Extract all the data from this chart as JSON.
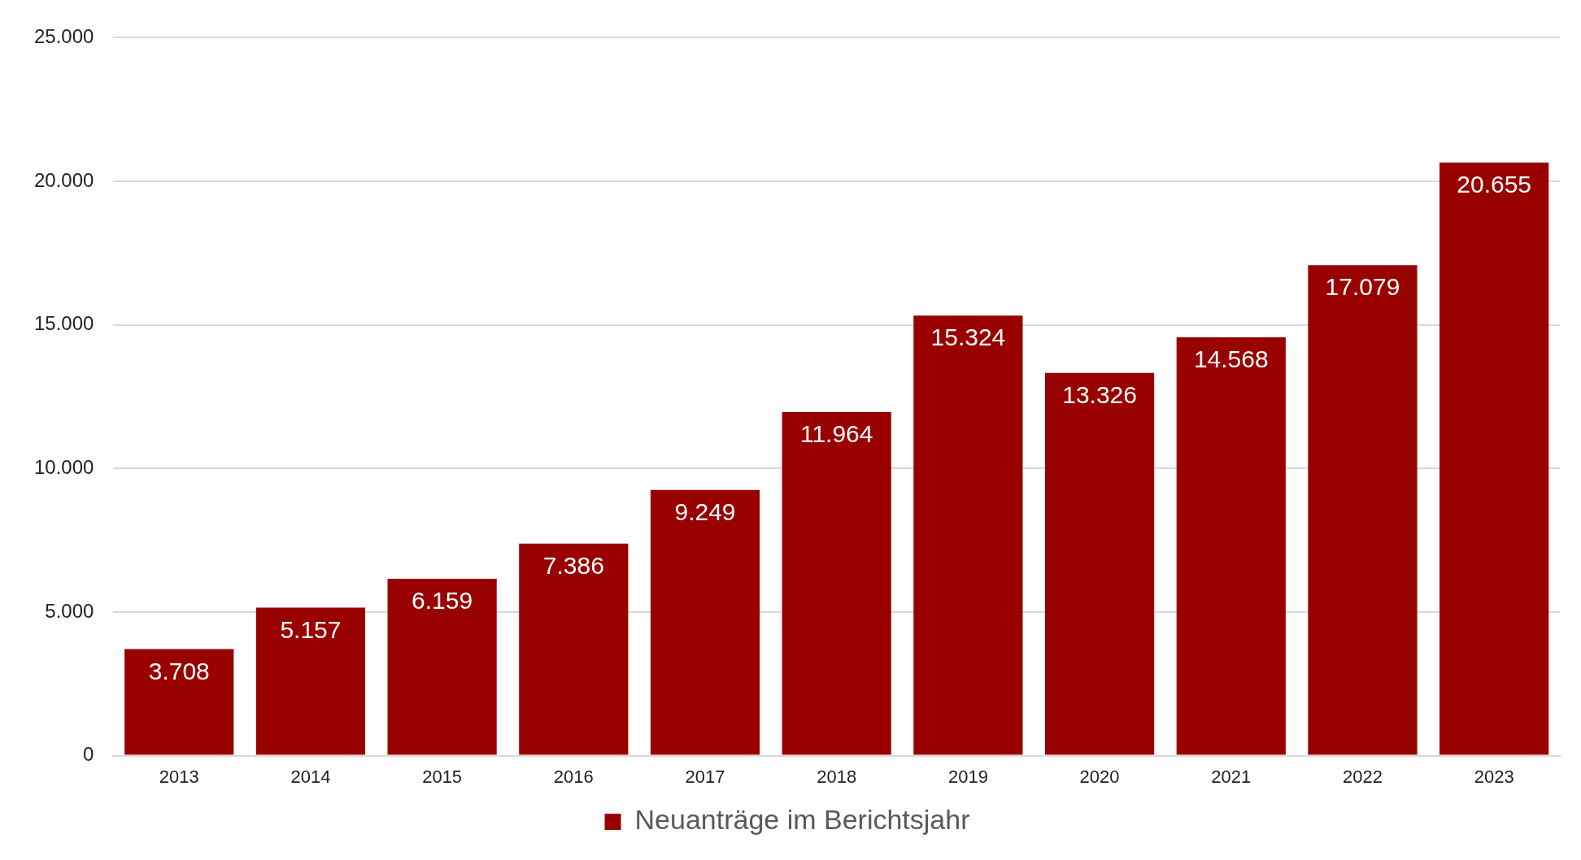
{
  "chart_data": {
    "type": "bar",
    "categories": [
      "2013",
      "2014",
      "2015",
      "2016",
      "2017",
      "2018",
      "2019",
      "2020",
      "2021",
      "2022",
      "2023"
    ],
    "series": [
      {
        "name": "Neuanträge im Berichtsjahr",
        "color": "#990000",
        "values": [
          3708,
          5157,
          6159,
          7386,
          9249,
          11964,
          15324,
          13326,
          14568,
          17079,
          20655
        ],
        "value_labels": [
          "3.708",
          "5.157",
          "6.159",
          "7.386",
          "9.249",
          "11.964",
          "15.324",
          "13.326",
          "14.568",
          "17.079",
          "20.655"
        ]
      }
    ],
    "ylim": [
      0,
      25000
    ],
    "yticks": [
      {
        "value": 0,
        "label": "0"
      },
      {
        "value": 5000,
        "label": "5.000"
      },
      {
        "value": 10000,
        "label": "10.000"
      },
      {
        "value": 15000,
        "label": "15.000"
      },
      {
        "value": 20000,
        "label": "20.000"
      },
      {
        "value": 25000,
        "label": "25.000"
      }
    ],
    "grid": "y",
    "legend": "bottom"
  }
}
